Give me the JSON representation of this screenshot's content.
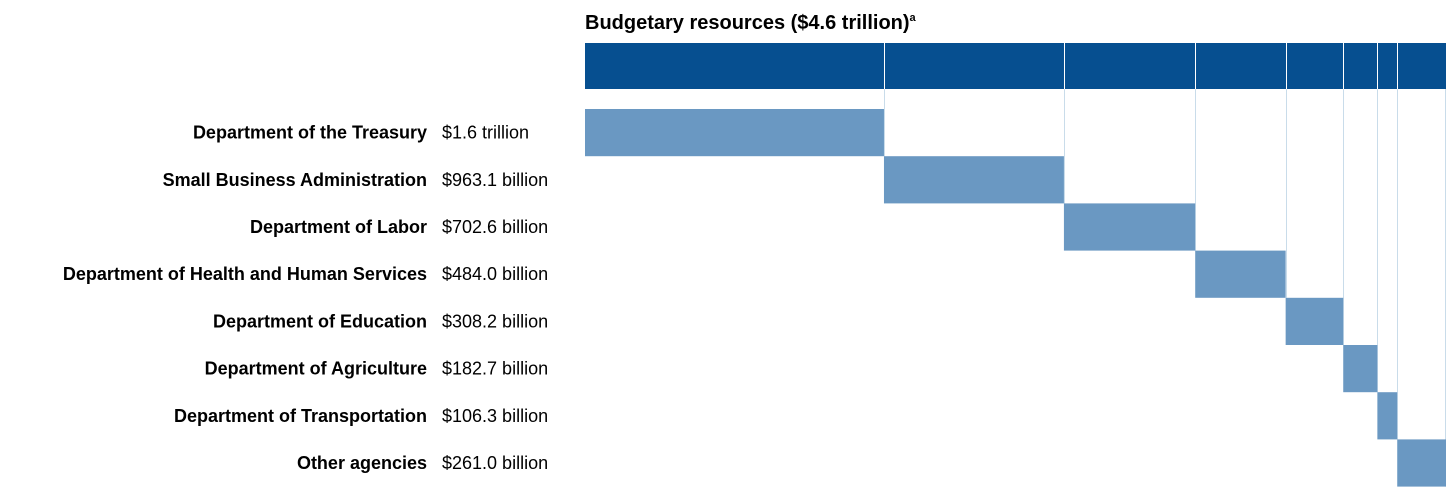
{
  "chart_data": {
    "type": "bar",
    "title": "Budgetary resources ($4.6 trillion)",
    "title_footnote": "a",
    "total": 4.6,
    "unit": "trillion dollars",
    "categories": [
      "Department of the Treasury",
      "Small Business Administration",
      "Department of Labor",
      "Department of Health and Human Services",
      "Department of Education",
      "Department of Agriculture",
      "Department of Transportation",
      "Other agencies"
    ],
    "value_labels": [
      "$1.6 trillion",
      "$963.1 billion",
      "$702.6 billion",
      "$484.0 billion",
      "$308.2 billion",
      "$182.7 billion",
      "$106.3 billion",
      "$261.0 billion"
    ],
    "values": [
      1600.0,
      963.1,
      702.6,
      484.0,
      308.2,
      182.7,
      106.3,
      261.0
    ],
    "value_units": "billion dollars",
    "grid": true
  },
  "colors": {
    "total_bar": "#064f90",
    "segment": "#6a98c2",
    "divider": "#c9dcea"
  }
}
